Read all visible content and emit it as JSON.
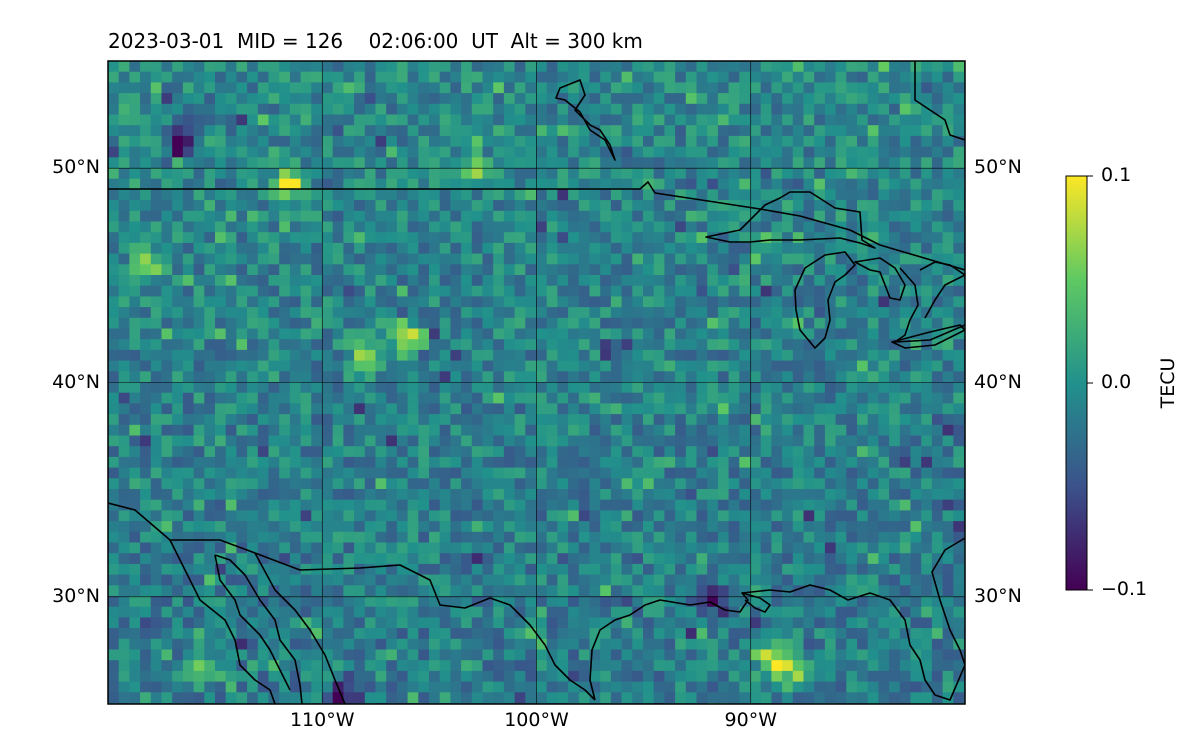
{
  "title": "2023-03-01  MID = 126    02:06:00  UT  Alt = 300 km",
  "map": {
    "projection": "PlateCarree",
    "lon_range": [
      -120,
      -80
    ],
    "lat_range": [
      25,
      55
    ],
    "gridlines": true,
    "features": [
      "coastlines",
      "country borders",
      "Great Lakes"
    ],
    "field": "TEC perturbation (dTEC)",
    "colormap": "viridis",
    "hotspots": [
      {
        "lon": -106.0,
        "lat": 42.1,
        "value": 0.1
      },
      {
        "lon": -108.0,
        "lat": 41.2,
        "value": 0.07
      },
      {
        "lon": -111.5,
        "lat": 49.2,
        "value": 0.1
      },
      {
        "lon": -115.5,
        "lat": 26.6,
        "value": 0.08
      },
      {
        "lon": -89.0,
        "lat": 27.0,
        "value": 0.1
      },
      {
        "lon": -88.0,
        "lat": 26.5,
        "value": 0.08
      },
      {
        "lon": -118.0,
        "lat": 45.5,
        "value": 0.06
      },
      {
        "lon": -103.0,
        "lat": 49.9,
        "value": 0.07
      }
    ],
    "lowspots": [
      {
        "lon": -116.5,
        "lat": 51.2,
        "value": -0.1
      },
      {
        "lon": -109.0,
        "lat": 25.3,
        "value": -0.08
      },
      {
        "lon": -91.5,
        "lat": 29.8,
        "value": -0.07
      }
    ]
  },
  "axes": {
    "xticks": [
      {
        "value": -110,
        "label": "110°W"
      },
      {
        "value": -100,
        "label": "100°W"
      },
      {
        "value": -90,
        "label": "90°W"
      }
    ],
    "yticks": [
      {
        "value": 30,
        "label": "30°N"
      },
      {
        "value": 40,
        "label": "40°N"
      },
      {
        "value": 50,
        "label": "50°N"
      }
    ]
  },
  "colorbar": {
    "label": "TECU",
    "vmin": -0.1,
    "vmax": 0.1,
    "ticks": [
      {
        "value": 0.1,
        "label": "0.1"
      },
      {
        "value": 0.0,
        "label": "0.0"
      },
      {
        "value": -0.1,
        "label": "−0.1"
      }
    ]
  },
  "colors": {
    "background": "#ffffff",
    "land_lines": "#000000",
    "colormap_stops": [
      "#440154",
      "#3b528b",
      "#21918c",
      "#5ec962",
      "#fde725"
    ]
  }
}
